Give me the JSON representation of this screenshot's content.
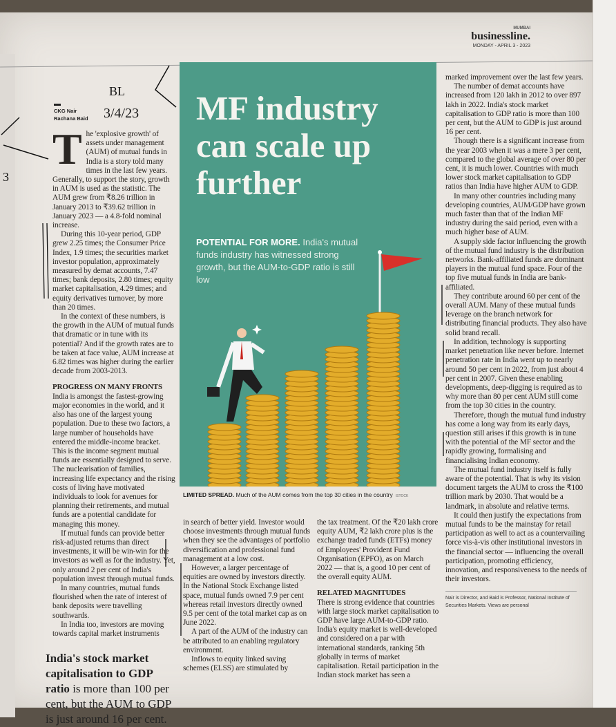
{
  "masthead": {
    "city": "MUMBAI",
    "brand": "businessline.",
    "date": "MONDAY - APRIL 3 - 2023"
  },
  "handwriting": {
    "note": "BL",
    "date": "3/4/23",
    "margin_mark": "3"
  },
  "byline": {
    "author1": "CKG Nair",
    "author2": "Rachana Baid"
  },
  "headline": "MF industry can scale up further",
  "deck": {
    "lead": "POTENTIAL FOR MORE.",
    "text": " India's mutual funds industry has witnessed strong growth, but the AUM-to-GDP ratio is still low"
  },
  "caption": {
    "lead": "LIMITED SPREAD.",
    "text": " Much of the AUM comes from the top 30 cities in the country",
    "credit": "ISTOCK"
  },
  "body": {
    "dropcap": "T",
    "col1": [
      "he 'explosive growth' of assets under management (AUM) of mutual funds in India is a story told many times in the last few years. Generally, to support the story, growth in AUM is used as the statistic. The AUM grew from ₹8.26 trillion in January 2013 to ₹39.62 trillion in January 2023 — a 4.8-fold nominal increase.",
      "During this 10-year period, GDP grew 2.25 times; the Consumer Price Index, 1.9 times; the securities market investor population, approximately measured by demat accounts, 7.47 times; bank deposits, 2.80 times; equity market capitalisation, 4.29 times; and equity derivatives turnover, by more than 20 times.",
      "In the context of these numbers, is the growth in the AUM of mutual funds that dramatic or in tune with its potential? And if the growth rates are to be taken at face value, AUM increase at 6.82 times was higher during the earlier decade from 2003-2013."
    ],
    "heading1": "PROGRESS ON MANY FRONTS",
    "col1b": [
      "India is amongst the fastest-growing major economies in the world, and it also has one of the largest young population. Due to these two factors, a large number of households have entered the middle-income bracket. This is the income segment mutual funds are essentially designed to serve. The nuclearisation of families, increasing life expectancy and the rising costs of living have motivated individuals to look for avenues for planning their retirements, and mutual funds are a potential candidate for managing this money.",
      "If mutual funds can provide better risk-adjusted returns than direct investments, it will be win-win for the investors as well as for the industry. Yet, only around 2 per cent of India's population invest through mutual funds.",
      "In many countries, mutual funds flourished when the rate of interest of bank deposits were travelling southwards.",
      "In India too, investors are moving towards capital market instruments"
    ],
    "col2": [
      "in search of better yield. Investor would choose investments through mutual funds when they see the advantages of portfolio diversification and professional fund management at a low cost.",
      "However, a larger percentage of equities are owned by investors directly. In the National Stock Exchange listed space, mutual funds owned 7.9 per cent whereas retail investors directly owned 9.5 per cent of the total market cap as on June 2022.",
      "A part of the AUM of the industry can be attributed to an enabling regulatory environment.",
      "Inflows to equity linked saving schemes (ELSS) are stimulated by"
    ],
    "col3": [
      "the tax treatment. Of the ₹20 lakh crore equity AUM, ₹2 lakh crore plus is the exchange traded funds (ETFs) money of Employees' Provident Fund Organisation (EPFO), as on March 2022 — that is, a good 10 per cent of the overall equity AUM."
    ],
    "heading2": "RELATED MAGNITUDES",
    "col3b": [
      "There is strong evidence that countries with large stock market capitalisation to GDP have large AUM-to-GDP ratio. India's equity market is well-developed and considered on a par with international standards, ranking 5th globally in terms of market capitalisation. Retail participation in the Indian stock market has seen a"
    ],
    "col4": [
      "marked improvement over the last few years.",
      "The number of demat accounts have increased from 120 lakh in 2012 to over 897 lakh in 2022. India's stock market capitalisation to GDP ratio is more than 100 per cent, but the AUM to GDP is just around 16 per cent.",
      "Though there is a significant increase from the year 2003 when it was a mere 3 per cent, compared to the global average of over 80 per cent, it is much lower. Countries with much lower stock market capitalisation to GDP ratios than India have higher AUM to GDP.",
      "In many other countries including many developing countries, AUM/GDP have grown much faster than that of the Indian MF industry during the said period, even with a much higher base of AUM.",
      "A supply side factor influencing the growth of the mutual fund industry is the distribution networks. Bank-affiliated funds are dominant players in the mutual fund space. Four of the top five mutual funds in India are bank-affiliated.",
      "They contribute around 60 per cent of the overall AUM. Many of these mutual funds leverage on the branch network for distributing financial products. They also have solid brand recall.",
      "In addition, technology is supporting market penetration like never before. Internet penetration rate in India went up to nearly around 50 per cent in 2022, from just about 4 per cent in 2007. Given these enabling developments, deep-digging is required as to why more than 80 per cent AUM still come from the top 30 cities in the country.",
      "Therefore, though the mutual fund industry has come a long way from its early days, question still arises if this growth is in tune with the potential of the MF sector and the rapidly growing, formalising and financialising Indian economy.",
      "The mutual fund industry itself is fully aware of the potential. That is why its vision document targets the AUM to cross the ₹100 trillion mark by 2030. That would be a landmark, in absolute and relative terms.",
      "It could then justify the expectations from mutual funds to be the mainstay for retail participation as well to act as a countervailing force vis-à-vis other institutional investors in the financial sector — influencing the overall participation, promoting efficiency, innovation, and responsiveness to the needs of their investors."
    ]
  },
  "pullquote": {
    "bold": "India's stock market capitalisation to GDP ratio",
    "rest": " is more than 100 per cent, but the AUM to GDP is just around 16 per cent."
  },
  "footnote": "Nair is Director, and Baid is Professor, National Institute of Securities Markets. Views are personal",
  "colors": {
    "panel": "#4d9b88",
    "flag": "#d8302a",
    "coin": "#e3ac2a"
  }
}
